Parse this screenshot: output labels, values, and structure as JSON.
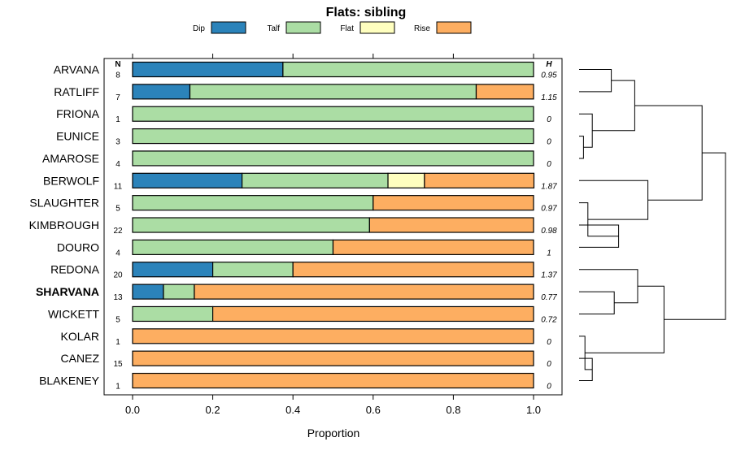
{
  "chart_data": {
    "type": "bar",
    "stacked": true,
    "orientation": "horizontal",
    "title": "Flats: sibling",
    "xlabel": "Proportion",
    "xlim": [
      0,
      1
    ],
    "xticks": [
      "0.0",
      "0.2",
      "0.4",
      "0.6",
      "0.8",
      "1.0"
    ],
    "n_header": "N",
    "h_header": "H",
    "legend_position": "top",
    "legend": [
      {
        "name": "Dip",
        "color": "#2b83ba"
      },
      {
        "name": "Talf",
        "color": "#abdda4"
      },
      {
        "name": "Flat",
        "color": "#ffffbf"
      },
      {
        "name": "Rise",
        "color": "#fdae61"
      }
    ],
    "categories": [
      "ARVANA",
      "RATLIFF",
      "FRIONA",
      "EUNICE",
      "AMAROSE",
      "BERWOLF",
      "SLAUGHTER",
      "KIMBROUGH",
      "DOURO",
      "REDONA",
      "SHARVANA",
      "WICKETT",
      "KOLAR",
      "CANEZ",
      "BLAKENEY"
    ],
    "highlighted_category": "SHARVANA",
    "n": [
      "8",
      "7",
      "1",
      "3",
      "4",
      "11",
      "5",
      "22",
      "4",
      "20",
      "13",
      "5",
      "1",
      "15",
      "1"
    ],
    "h": [
      "0.95",
      "1.15",
      "0",
      "0",
      "0",
      "1.87",
      "0.97",
      "0.98",
      "1",
      "1.37",
      "0.77",
      "0.72",
      "0",
      "0",
      "0"
    ],
    "series": [
      {
        "name": "Dip",
        "values": [
          0.375,
          0.143,
          0,
          0,
          0,
          0.273,
          0,
          0,
          0,
          0.2,
          0.077,
          0,
          0,
          0,
          0
        ]
      },
      {
        "name": "Talf",
        "values": [
          0.625,
          0.714,
          1,
          1,
          1,
          0.364,
          0.6,
          0.591,
          0.5,
          0.2,
          0.077,
          0.2,
          0,
          0,
          0
        ]
      },
      {
        "name": "Flat",
        "values": [
          0,
          0,
          0,
          0,
          0,
          0.091,
          0,
          0,
          0,
          0,
          0,
          0,
          0,
          0,
          0
        ]
      },
      {
        "name": "Rise",
        "values": [
          0,
          0.143,
          0,
          0,
          0,
          0.273,
          0.4,
          0.409,
          0.5,
          0.6,
          0.846,
          0.8,
          1,
          1,
          1
        ]
      }
    ],
    "dendrogram": {
      "type": "hierarchical-clustering",
      "merges": [
        [
          -1,
          -2,
          0.22
        ],
        [
          -4,
          -5,
          0.03
        ],
        [
          -3,
          2,
          0.09
        ],
        [
          1,
          3,
          0.38
        ],
        [
          -8,
          -9,
          0.27
        ],
        [
          -7,
          5,
          0.06
        ],
        [
          -6,
          6,
          0.47
        ],
        [
          4,
          7,
          0.84
        ],
        [
          -11,
          -12,
          0.24
        ],
        [
          -10,
          9,
          0.4
        ],
        [
          -14,
          -15,
          0.09
        ],
        [
          -13,
          11,
          0.04
        ],
        [
          10,
          12,
          0.58
        ],
        [
          8,
          13,
          1.0
        ]
      ]
    }
  }
}
